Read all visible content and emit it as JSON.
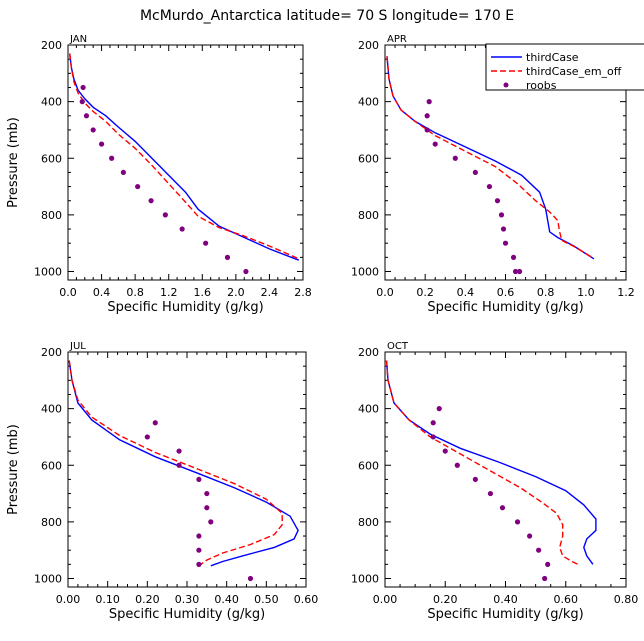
{
  "figure": {
    "title": "McMurdo_Antarctica  latitude= 70 S longitude= 170 E"
  },
  "legend": {
    "items": [
      {
        "label": "thirdCase",
        "color": "#0000ff",
        "style": "solid"
      },
      {
        "label": "thirdCase_em_off",
        "color": "#ff0000",
        "style": "dashed"
      },
      {
        "label": "roobs",
        "color": "#800080",
        "style": "dot"
      }
    ]
  },
  "chart_data": [
    {
      "type": "line",
      "panel": "JAN",
      "xlabel": "Specific Humidity (g/kg)",
      "ylabel": "Pressure (mb)",
      "xlim": [
        0,
        2.8
      ],
      "ylim": [
        200,
        1030
      ],
      "y_inverted": true,
      "xticks": [
        "0.0",
        "0.4",
        "0.8",
        "1.2",
        "1.6",
        "2.0",
        "2.4",
        "2.8"
      ],
      "xtick_values": [
        0,
        0.4,
        0.8,
        1.2,
        1.6,
        2.0,
        2.4,
        2.8
      ],
      "yticks": [
        "200",
        "400",
        "600",
        "800",
        "1000"
      ],
      "ytick_values": [
        200,
        400,
        600,
        800,
        1000
      ],
      "series": [
        {
          "name": "thirdCase",
          "x": [
            0.02,
            0.04,
            0.07,
            0.12,
            0.2,
            0.3,
            0.45,
            0.6,
            0.8,
            1.0,
            1.2,
            1.4,
            1.55,
            1.8,
            2.1,
            2.4,
            2.75
          ],
          "y": [
            230,
            280,
            320,
            360,
            390,
            420,
            450,
            490,
            540,
            600,
            660,
            720,
            780,
            840,
            880,
            920,
            960
          ]
        },
        {
          "name": "thirdCase_em_off",
          "x": [
            0.02,
            0.04,
            0.07,
            0.12,
            0.2,
            0.3,
            0.45,
            0.6,
            0.8,
            1.0,
            1.2,
            1.4,
            1.55,
            1.8,
            2.1,
            2.4,
            2.75
          ],
          "y": [
            230,
            280,
            330,
            370,
            405,
            435,
            470,
            515,
            565,
            625,
            690,
            755,
            805,
            845,
            875,
            910,
            955
          ]
        },
        {
          "name": "roobs",
          "x": [
            0.18,
            0.17,
            0.22,
            0.3,
            0.4,
            0.52,
            0.66,
            0.83,
            0.99,
            1.16,
            1.36,
            1.64,
            1.9,
            2.12
          ],
          "y": [
            350,
            400,
            450,
            500,
            550,
            600,
            650,
            700,
            750,
            800,
            850,
            900,
            950,
            1000
          ]
        }
      ]
    },
    {
      "type": "line",
      "panel": "APR",
      "xlabel": "Specific Humidity (g/kg)",
      "ylabel": "Pressure (mb)",
      "xlim": [
        0,
        1.2
      ],
      "ylim": [
        200,
        1030
      ],
      "y_inverted": true,
      "xticks": [
        "0.0",
        "0.2",
        "0.4",
        "0.6",
        "0.8",
        "1.0",
        "1.2"
      ],
      "xtick_values": [
        0,
        0.2,
        0.4,
        0.6,
        0.8,
        1.0,
        1.2
      ],
      "yticks": [
        "200",
        "400",
        "600",
        "800",
        "1000"
      ],
      "ytick_values": [
        200,
        400,
        600,
        800,
        1000
      ],
      "series": [
        {
          "name": "thirdCase",
          "x": [
            0.01,
            0.02,
            0.04,
            0.08,
            0.15,
            0.25,
            0.4,
            0.55,
            0.68,
            0.77,
            0.8,
            0.81,
            0.82,
            0.86,
            0.94,
            1.04
          ],
          "y": [
            240,
            320,
            380,
            430,
            470,
            510,
            560,
            610,
            660,
            720,
            780,
            820,
            860,
            880,
            910,
            955
          ]
        },
        {
          "name": "thirdCase_em_off",
          "x": [
            0.01,
            0.02,
            0.04,
            0.08,
            0.15,
            0.25,
            0.4,
            0.55,
            0.66,
            0.75,
            0.82,
            0.86,
            0.87,
            0.88,
            0.95,
            1.03
          ],
          "y": [
            240,
            320,
            380,
            430,
            470,
            520,
            575,
            630,
            690,
            750,
            790,
            820,
            860,
            890,
            915,
            950
          ]
        },
        {
          "name": "roobs",
          "x": [
            0.22,
            0.21,
            0.21,
            0.25,
            0.35,
            0.45,
            0.52,
            0.56,
            0.58,
            0.59,
            0.6,
            0.64,
            0.65,
            0.67
          ],
          "y": [
            400,
            450,
            500,
            550,
            600,
            650,
            700,
            750,
            800,
            850,
            900,
            950,
            1000,
            1000
          ]
        }
      ]
    },
    {
      "type": "line",
      "panel": "JUL",
      "xlabel": "Specific Humidity (g/kg)",
      "ylabel": "Pressure (mb)",
      "xlim": [
        0,
        0.6
      ],
      "ylim": [
        200,
        1030
      ],
      "y_inverted": true,
      "xticks": [
        "0.00",
        "0.10",
        "0.20",
        "0.30",
        "0.40",
        "0.50",
        "0.60"
      ],
      "xtick_values": [
        0,
        0.1,
        0.2,
        0.3,
        0.4,
        0.5,
        0.6
      ],
      "yticks": [
        "200",
        "400",
        "600",
        "800",
        "1000"
      ],
      "ytick_values": [
        200,
        400,
        600,
        800,
        1000
      ],
      "series": [
        {
          "name": "thirdCase",
          "x": [
            0.003,
            0.01,
            0.025,
            0.06,
            0.13,
            0.22,
            0.33,
            0.42,
            0.5,
            0.56,
            0.58,
            0.57,
            0.52,
            0.44,
            0.39,
            0.36
          ],
          "y": [
            230,
            300,
            380,
            440,
            510,
            570,
            630,
            680,
            730,
            780,
            830,
            860,
            890,
            920,
            940,
            955
          ]
        },
        {
          "name": "thirdCase_em_off",
          "x": [
            0.003,
            0.01,
            0.025,
            0.06,
            0.13,
            0.22,
            0.33,
            0.42,
            0.5,
            0.54,
            0.54,
            0.52,
            0.46,
            0.39,
            0.35,
            0.33
          ],
          "y": [
            230,
            300,
            370,
            430,
            495,
            555,
            615,
            665,
            720,
            770,
            810,
            845,
            880,
            910,
            935,
            955
          ]
        },
        {
          "name": "roobs",
          "x": [
            0.22,
            0.2,
            0.28,
            0.28,
            0.33,
            0.35,
            0.35,
            0.36,
            0.33,
            0.33,
            0.33,
            0.46
          ],
          "y": [
            450,
            500,
            550,
            600,
            650,
            700,
            750,
            800,
            850,
            900,
            950,
            1000
          ]
        }
      ]
    },
    {
      "type": "line",
      "panel": "OCT",
      "xlabel": "Specific Humidity (g/kg)",
      "ylabel": "Pressure (mb)",
      "xlim": [
        0,
        0.8
      ],
      "ylim": [
        200,
        1030
      ],
      "y_inverted": true,
      "xticks": [
        "0.00",
        "0.20",
        "0.40",
        "0.60",
        "0.80"
      ],
      "xtick_values": [
        0,
        0.2,
        0.4,
        0.6,
        0.8
      ],
      "yticks": [
        "200",
        "400",
        "600",
        "800",
        "1000"
      ],
      "ytick_values": [
        200,
        400,
        600,
        800,
        1000
      ],
      "series": [
        {
          "name": "thirdCase",
          "x": [
            0.005,
            0.01,
            0.03,
            0.08,
            0.15,
            0.25,
            0.38,
            0.5,
            0.6,
            0.66,
            0.7,
            0.7,
            0.67,
            0.66,
            0.67,
            0.69
          ],
          "y": [
            230,
            300,
            380,
            440,
            490,
            540,
            590,
            640,
            690,
            740,
            790,
            830,
            860,
            890,
            920,
            950
          ]
        },
        {
          "name": "thirdCase_em_off",
          "x": [
            0.005,
            0.01,
            0.03,
            0.08,
            0.15,
            0.25,
            0.35,
            0.45,
            0.52,
            0.57,
            0.59,
            0.59,
            0.58,
            0.59,
            0.62,
            0.64
          ],
          "y": [
            230,
            300,
            380,
            440,
            500,
            560,
            620,
            680,
            730,
            770,
            810,
            850,
            890,
            920,
            940,
            950
          ]
        },
        {
          "name": "roobs",
          "x": [
            0.18,
            0.16,
            0.16,
            0.2,
            0.24,
            0.3,
            0.35,
            0.39,
            0.44,
            0.48,
            0.51,
            0.54,
            0.53
          ],
          "y": [
            400,
            450,
            500,
            550,
            600,
            650,
            700,
            750,
            800,
            850,
            900,
            950,
            1000
          ]
        }
      ]
    }
  ]
}
